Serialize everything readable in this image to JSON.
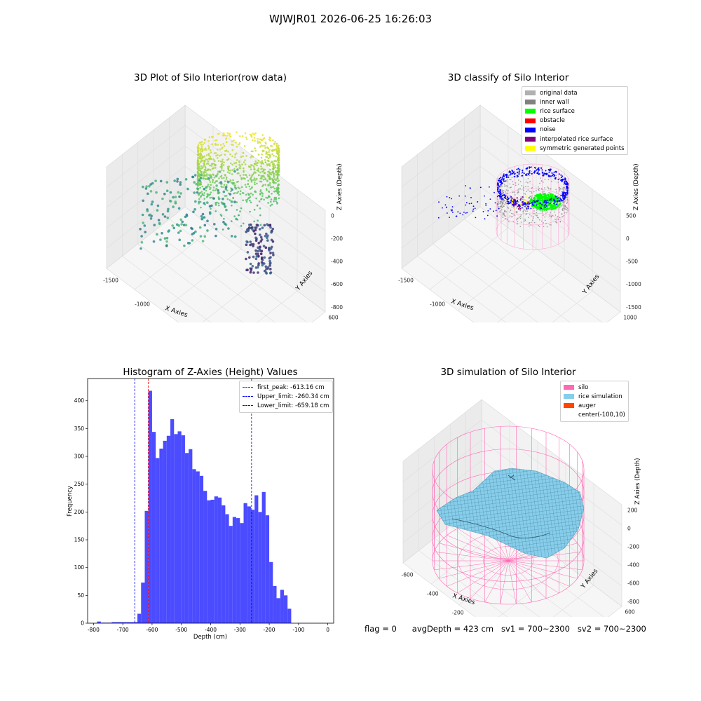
{
  "suptitle": "WJWJR01 2026-06-25 16:26:03",
  "status": {
    "flag": "flag = 0",
    "avg_depth": "avgDepth = 423 cm",
    "sv1": "sv1 = 700~2300",
    "sv2": "sv2 = 700~2300"
  },
  "chart_data": [
    {
      "type": "scatter",
      "title": "3D Plot of Silo Interior(row data)",
      "xlabel": "X Axies",
      "ylabel": "Y Axies",
      "zlabel": "Z Axies (Depth)",
      "x_ticks": [
        "-1500",
        "-1000",
        "-500",
        "0",
        "500"
      ],
      "y_ticks": [
        "-800",
        "-600",
        "-400",
        "-200",
        "0",
        "200",
        "400",
        "600"
      ],
      "z_ticks": [
        "0",
        "-200",
        "-400",
        "-600",
        "-800"
      ],
      "colormap": "viridis"
    },
    {
      "type": "scatter",
      "title": "3D classify of Silo Interior",
      "xlabel": "X Axies",
      "ylabel": "Y Axies",
      "zlabel": "Z Axies (Depth)",
      "x_ticks": [
        "-1500",
        "-1000",
        "-500",
        "0",
        "500"
      ],
      "y_ticks": [
        "-1000",
        "-500",
        "0",
        "500",
        "1000"
      ],
      "z_ticks": [
        "500",
        "0",
        "-500",
        "-1000",
        "-1500"
      ],
      "legend_position": "top-right",
      "legend": [
        {
          "label": "original data",
          "color": "#b0b0b0"
        },
        {
          "label": "inner wall",
          "color": "#808080"
        },
        {
          "label": "rice surface",
          "color": "#00ff00"
        },
        {
          "label": "obstacle",
          "color": "#ff0000"
        },
        {
          "label": "noise",
          "color": "#0000ff"
        },
        {
          "label": "interpolated rice surface",
          "color": "#800080"
        },
        {
          "label": "symmetric generated points",
          "color": "#ffff00"
        }
      ]
    },
    {
      "type": "bar",
      "title": "Histogram of Z-Axies (Height) Values",
      "xlabel": "Depth (cm)",
      "ylabel": "Frequency",
      "xlim": [
        -820,
        20
      ],
      "ylim": [
        0,
        440
      ],
      "bar_color": "#4b4bff",
      "x_ticks": [
        -800,
        -700,
        -600,
        -500,
        -400,
        -300,
        -200,
        -100,
        0
      ],
      "y_ticks": [
        0,
        50,
        100,
        150,
        200,
        250,
        300,
        350,
        400
      ],
      "bin_width": 12.5,
      "bins_start": [
        -787.5,
        -775,
        -762.5,
        -750,
        -737.5,
        -725,
        -712.5,
        -700,
        -687.5,
        -675,
        -662.5,
        -650,
        -637.5,
        -625,
        -612.5,
        -600,
        -587.5,
        -575,
        -562.5,
        -550,
        -537.5,
        -525,
        -512.5,
        -500,
        -487.5,
        -475,
        -462.5,
        -450,
        -437.5,
        -425,
        -412.5,
        -400,
        -387.5,
        -375,
        -362.5,
        -350,
        -337.5,
        -325,
        -312.5,
        -300,
        -287.5,
        -275,
        -262.5,
        -250,
        -237.5,
        -225,
        -212.5,
        -200,
        -187.5,
        -175,
        -162.5,
        -150,
        -137.5,
        -125,
        -112.5,
        -100,
        -87.5,
        -75,
        -62.5,
        -50,
        -37.5,
        -25
      ],
      "values": [
        3,
        1,
        1,
        1,
        2,
        2,
        2,
        2,
        2,
        2,
        2,
        17,
        73,
        202,
        418,
        344,
        297,
        314,
        328,
        337,
        367,
        340,
        345,
        338,
        306,
        313,
        277,
        273,
        265,
        238,
        221,
        222,
        228,
        226,
        212,
        196,
        175,
        191,
        189,
        180,
        216,
        210,
        204,
        230,
        200,
        236,
        194,
        110,
        67,
        45,
        60,
        50,
        26,
        0,
        0,
        0,
        0,
        0,
        0,
        0,
        0,
        0
      ],
      "legend_position": "top-right",
      "vlines": [
        {
          "label": "first_peak: -613.16 cm",
          "x": -613.16,
          "color": "#ff0000"
        },
        {
          "label": "Upper_limit: -260.34 cm",
          "x": -260.34,
          "color": "#0000ff"
        },
        {
          "label": "Lower_limit: -659.18 cm",
          "x": -659.18,
          "color": "#0000ff"
        }
      ]
    },
    {
      "type": "scatter",
      "title": "3D simulation of Silo Interior",
      "xlabel": "X Axies",
      "ylabel": "Y Axies",
      "zlabel": "Z Axies (Depth)",
      "x_ticks": [
        "-600",
        "-400",
        "-200",
        "0",
        "200",
        "400"
      ],
      "y_ticks": [
        "-400",
        "-200",
        "0",
        "200",
        "400",
        "600"
      ],
      "z_ticks": [
        "200",
        "0",
        "-200",
        "-400",
        "-600",
        "-800"
      ],
      "legend_position": "top-right",
      "legend": [
        {
          "label": "silo",
          "color": "#ff69b4"
        },
        {
          "label": "rice simulation",
          "color": "#87ceeb"
        },
        {
          "label": "auger",
          "color": "#ff4500"
        },
        {
          "label": "center(-100,10)",
          "color": "#ffffff"
        }
      ]
    }
  ]
}
